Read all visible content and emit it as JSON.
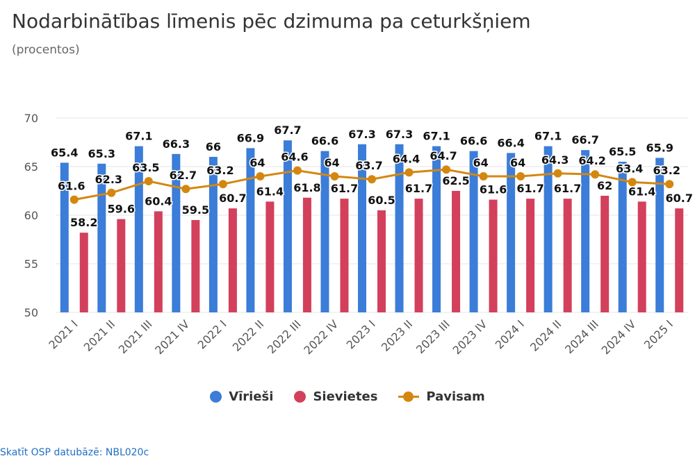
{
  "title": "Nodarbinātības līmenis pēc dzimuma pa ceturkšņiem",
  "subtitle": "(procentos)",
  "source_link": "Skatīt OSP datubāzē: NBL020c",
  "colors": {
    "men": "#3b7dd8",
    "women": "#d3405c",
    "total": "#d4870f",
    "grid": "#e6e6e6",
    "axis_text": "#555555"
  },
  "chart_data": {
    "type": "bar",
    "categories": [
      "2021 I",
      "2021 II",
      "2021 III",
      "2021 IV",
      "2022 I",
      "2022 II",
      "2022 III",
      "2022 IV",
      "2023 I",
      "2023 II",
      "2023 III",
      "2023 IV",
      "2024 I",
      "2024 II",
      "2024 III",
      "2024 IV",
      "2025 I"
    ],
    "series": [
      {
        "name": "Vīrieši",
        "type": "bar",
        "color": "#3b7dd8",
        "values": [
          65.4,
          65.3,
          67.1,
          66.3,
          66,
          66.9,
          67.7,
          66.6,
          67.3,
          67.3,
          67.1,
          66.6,
          66.4,
          67.1,
          66.7,
          65.5,
          65.9
        ]
      },
      {
        "name": "Sievietes",
        "type": "bar",
        "color": "#d3405c",
        "values": [
          58.2,
          59.6,
          60.4,
          59.5,
          60.7,
          61.4,
          61.8,
          61.7,
          60.5,
          61.7,
          62.5,
          61.6,
          61.7,
          61.7,
          62,
          61.4,
          60.7
        ]
      },
      {
        "name": "Pavisam",
        "type": "line",
        "color": "#d4870f",
        "values": [
          61.6,
          62.3,
          63.5,
          62.7,
          63.2,
          64,
          64.6,
          64,
          63.7,
          64.4,
          64.7,
          64,
          64,
          64.3,
          64.2,
          63.4,
          63.2
        ]
      }
    ],
    "ylim": [
      50,
      70
    ],
    "yticks": [
      50,
      55,
      60,
      65,
      70
    ],
    "grid": true,
    "legend_position": "bottom-center",
    "data_labels": true
  }
}
